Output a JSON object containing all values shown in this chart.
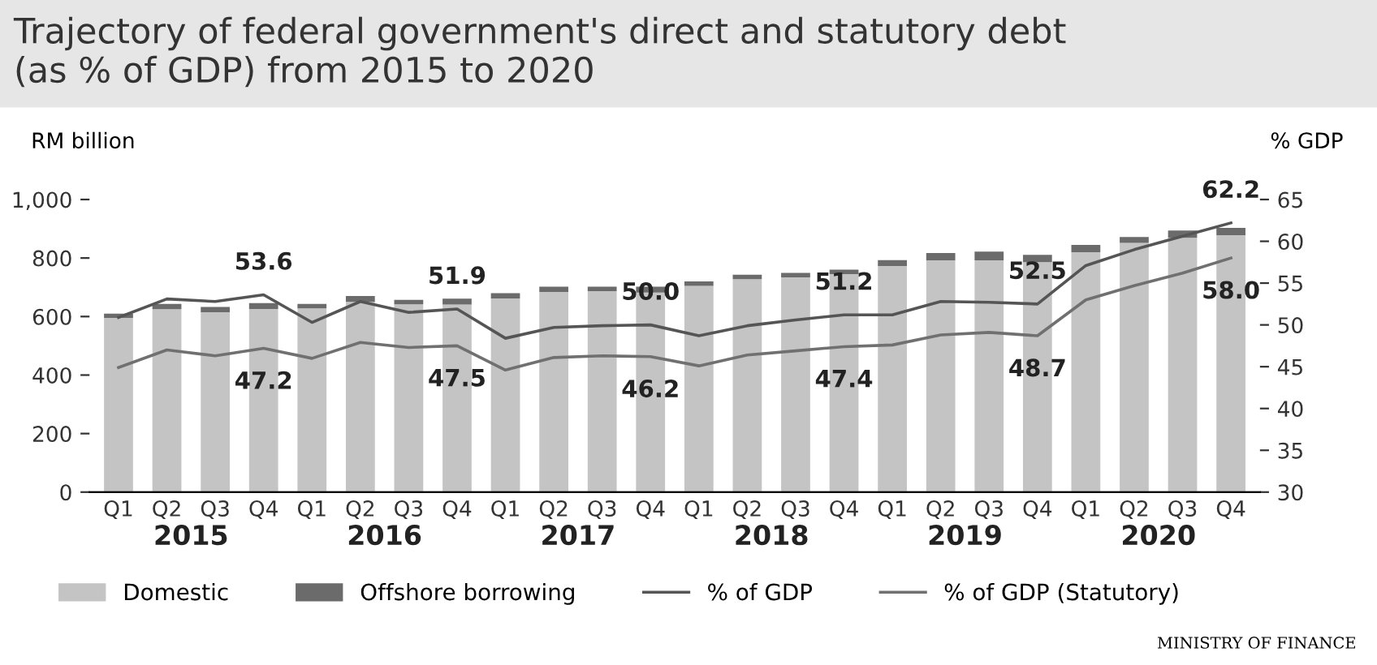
{
  "chart_data": {
    "type": "bar",
    "title": "Trajectory of federal government's direct and statutory debt\n(as % of GDP) from 2015 to 2020",
    "ylabel": "RM billion",
    "y2label": "% GDP",
    "categories": [
      "Q1",
      "Q2",
      "Q3",
      "Q4",
      "Q1",
      "Q2",
      "Q3",
      "Q4",
      "Q1",
      "Q2",
      "Q3",
      "Q4",
      "Q1",
      "Q2",
      "Q3",
      "Q4",
      "Q1",
      "Q2",
      "Q3",
      "Q4",
      "Q1",
      "Q2",
      "Q3",
      "Q4"
    ],
    "stacked": true,
    "series": [
      {
        "name": "Domestic",
        "color": "#c4c4c4",
        "values": [
          595,
          625,
          615,
          626,
          628,
          650,
          642,
          641,
          662,
          684,
          687,
          682,
          705,
          728,
          734,
          745,
          773,
          792,
          792,
          786,
          820,
          852,
          869,
          878
        ]
      },
      {
        "name": "Offshore borrowing",
        "color": "#6b6b6b",
        "values": [
          15,
          18,
          18,
          20,
          15,
          20,
          15,
          20,
          18,
          18,
          15,
          20,
          15,
          15,
          15,
          15,
          20,
          25,
          30,
          25,
          25,
          20,
          25,
          25
        ]
      },
      {
        "name": "% of GDP",
        "type": "line",
        "axis": "y2",
        "color": "#555555",
        "values": [
          50.9,
          53.1,
          52.8,
          53.6,
          50.3,
          52.8,
          51.5,
          51.9,
          48.4,
          49.7,
          49.9,
          50.0,
          48.7,
          49.9,
          50.6,
          51.2,
          51.2,
          52.8,
          52.7,
          52.5,
          57.1,
          59.0,
          60.6,
          62.2
        ],
        "value_labels": [
          null,
          null,
          null,
          "53.6",
          null,
          null,
          null,
          "51.9",
          null,
          null,
          null,
          "50.0",
          null,
          null,
          null,
          "51.2",
          null,
          null,
          null,
          "52.5",
          null,
          null,
          null,
          "62.2"
        ]
      },
      {
        "name": "% of GDP (Statutory)",
        "type": "line",
        "axis": "y2",
        "color": "#707070",
        "values": [
          44.9,
          47.0,
          46.3,
          47.2,
          46.0,
          47.9,
          47.3,
          47.5,
          44.6,
          46.1,
          46.3,
          46.2,
          45.1,
          46.4,
          46.9,
          47.4,
          47.6,
          48.8,
          49.1,
          48.7,
          53.0,
          54.7,
          56.2,
          58.0
        ],
        "value_labels": [
          null,
          null,
          null,
          "47.2",
          null,
          null,
          null,
          "47.5",
          null,
          null,
          null,
          "46.2",
          null,
          null,
          null,
          "47.4",
          null,
          null,
          null,
          "48.7",
          null,
          null,
          null,
          "58.0"
        ]
      }
    ],
    "ylim": [
      0,
      1000
    ],
    "yticks": [
      0,
      200,
      400,
      600,
      800,
      {
        "value": 1000,
        "label": "1,000"
      }
    ],
    "y2lim": [
      30,
      65
    ],
    "y2ticks": [
      30,
      35,
      40,
      45,
      50,
      55,
      60,
      65
    ],
    "legend": "bottom",
    "grid": false,
    "annotations": [
      "2015",
      "2016",
      "2017",
      "2018",
      "2019",
      "2020",
      "MINISTRY OF FINANCE"
    ]
  }
}
